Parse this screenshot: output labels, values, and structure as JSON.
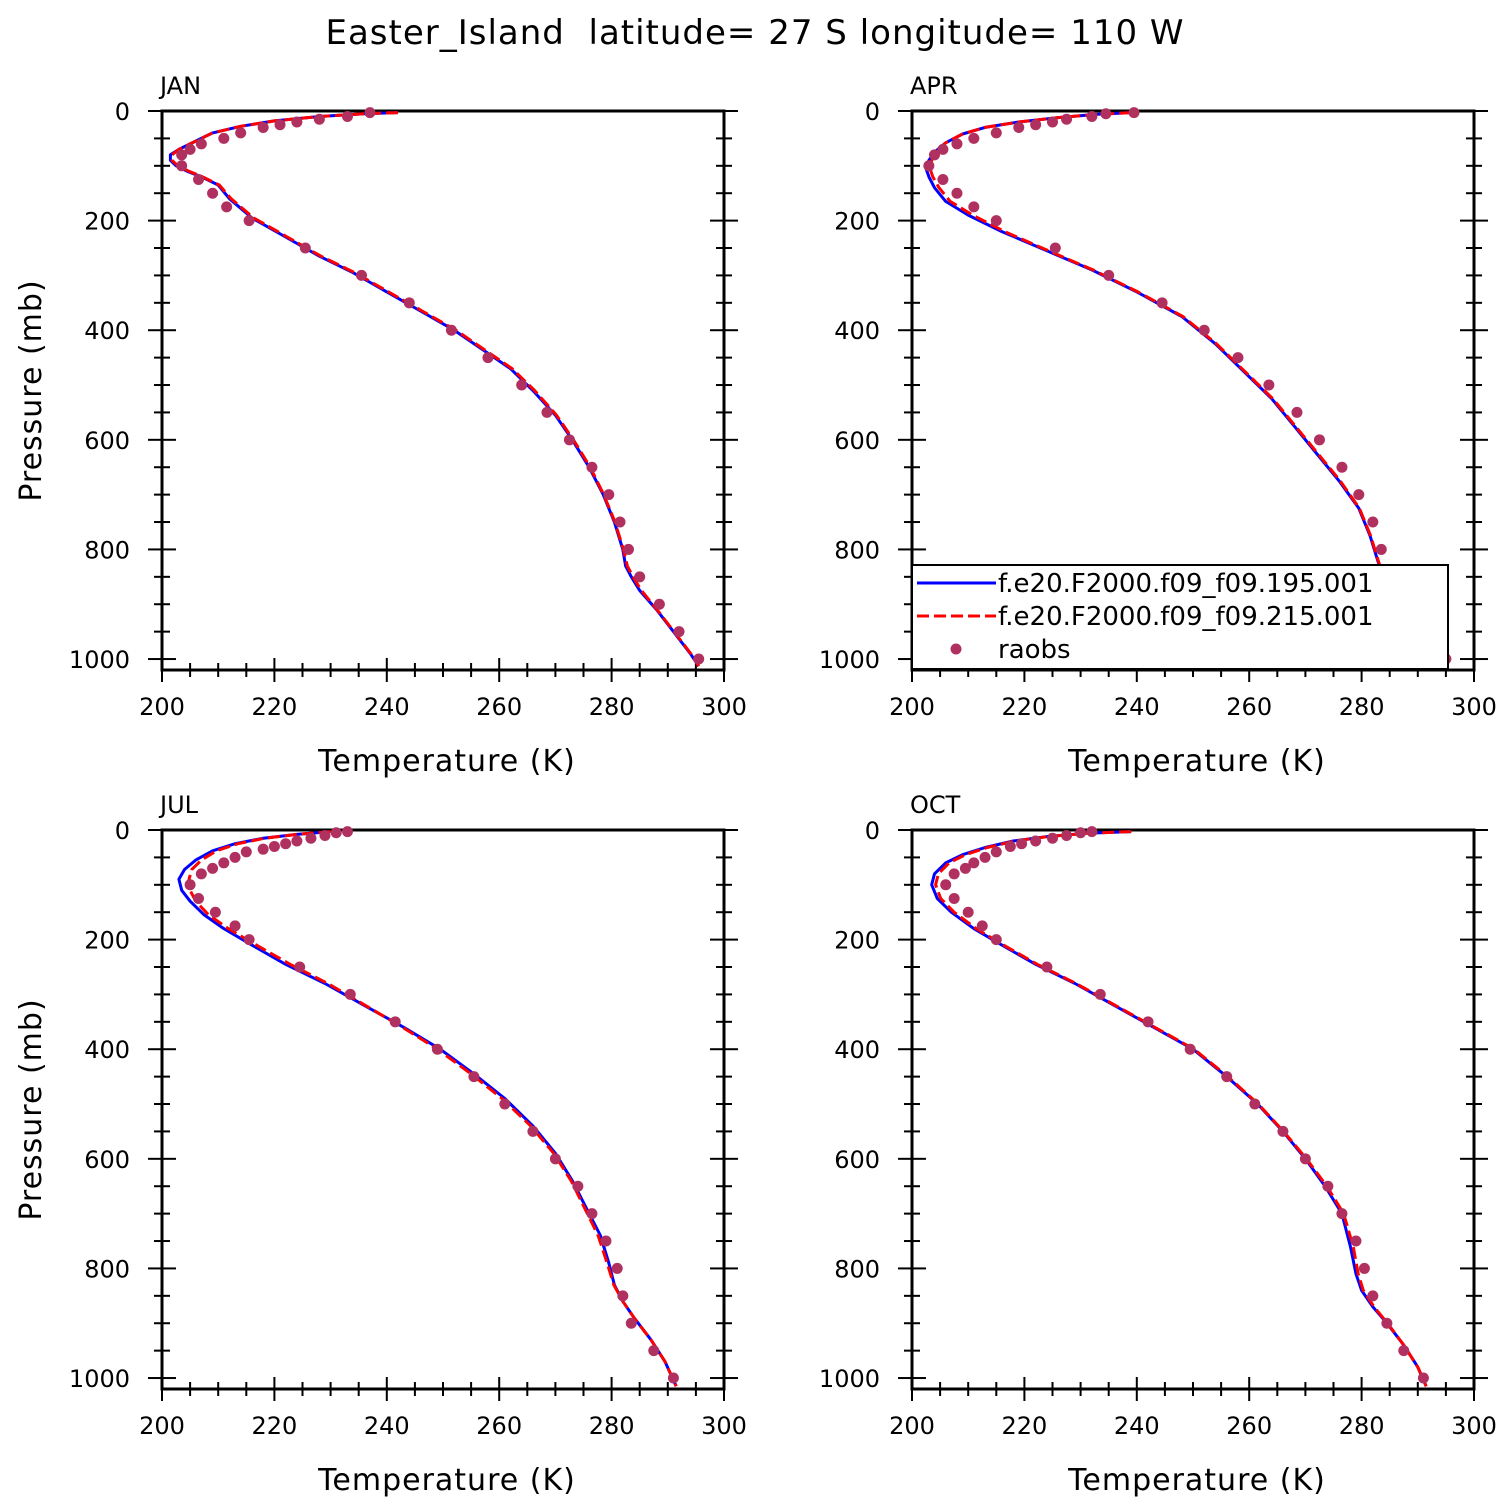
{
  "title": "Easter_Island  latitude= 27 S longitude= 110 W",
  "chart_data": [
    {
      "type": "line",
      "title": "JAN",
      "xlabel": "Temperature (K)",
      "ylabel": "Pressure (mb)",
      "xlim": [
        200,
        300
      ],
      "ylim": [
        0,
        1020
      ],
      "y_inverted": true,
      "xticks": [
        "200",
        "220",
        "240",
        "260",
        "280",
        "300"
      ],
      "yticks": [
        "0",
        "200",
        "400",
        "600",
        "800",
        "1000"
      ],
      "legend": false,
      "series": [
        {
          "name": "f.e20.F2000.f09_f09.195.001",
          "style": "solid",
          "color": "#0000ff",
          "x": [
            242,
            236,
            228,
            220,
            214,
            209,
            206,
            203,
            201.5,
            201.5,
            202.5,
            204.5,
            207,
            210,
            212,
            216,
            222,
            228,
            234,
            240,
            246,
            252,
            257,
            262,
            266,
            270,
            273,
            276,
            278.5,
            280.5,
            282,
            282.5,
            283.5,
            285,
            288,
            291,
            294,
            295.5
          ],
          "y": [
            3,
            5,
            10,
            18,
            28,
            40,
            55,
            70,
            80,
            90,
            100,
            110,
            120,
            135,
            160,
            195,
            230,
            265,
            295,
            330,
            365,
            400,
            435,
            470,
            510,
            555,
            600,
            650,
            700,
            750,
            800,
            830,
            850,
            875,
            910,
            950,
            990,
            1013
          ]
        },
        {
          "name": "f.e20.F2000.f09_f09.215.001",
          "style": "dashed",
          "color": "#ff0000",
          "x": [
            242,
            236,
            228,
            220,
            214,
            209,
            206,
            203,
            201.8,
            201.8,
            202.8,
            204.8,
            207.2,
            210.2,
            212.3,
            216.3,
            222.3,
            228.3,
            234.3,
            240.3,
            246.3,
            252.3,
            257.3,
            262.3,
            266.3,
            270.2,
            273.2,
            276.2,
            278.6,
            280.6,
            282.1,
            282.8,
            283.8,
            285.3,
            288.1,
            291.1,
            294.1,
            295.5
          ],
          "y": [
            3,
            5,
            10,
            18,
            28,
            40,
            55,
            70,
            80,
            90,
            100,
            110,
            120,
            135,
            160,
            195,
            230,
            265,
            295,
            330,
            365,
            400,
            435,
            470,
            510,
            555,
            600,
            650,
            700,
            750,
            800,
            830,
            850,
            875,
            910,
            950,
            990,
            1013
          ]
        },
        {
          "name": "raobs",
          "style": "dots",
          "color": "#b03060",
          "x": [
            237,
            233,
            228,
            224,
            221,
            218,
            214,
            211,
            207,
            205,
            203.5,
            203.5,
            206.5,
            209,
            211.5,
            215.5,
            225.5,
            235.5,
            244,
            251.5,
            258,
            264,
            268.5,
            272.5,
            276.5,
            279.5,
            281.5,
            283,
            285,
            288.5,
            292,
            295.5
          ],
          "y": [
            3,
            10,
            15,
            20,
            25,
            30,
            40,
            50,
            60,
            70,
            80,
            100,
            125,
            150,
            175,
            200,
            250,
            300,
            350,
            400,
            450,
            500,
            550,
            600,
            650,
            700,
            750,
            800,
            850,
            900,
            950,
            1000
          ]
        }
      ]
    },
    {
      "type": "line",
      "title": "APR",
      "xlabel": "Temperature (K)",
      "ylabel": "",
      "xlim": [
        200,
        300
      ],
      "ylim": [
        0,
        1020
      ],
      "y_inverted": true,
      "xticks": [
        "200",
        "220",
        "240",
        "260",
        "280",
        "300"
      ],
      "yticks": [
        "0",
        "200",
        "400",
        "600",
        "800",
        "1000"
      ],
      "legend": true,
      "legend_position": "bottom-right",
      "series": [
        {
          "name": "f.e20.F2000.f09_f09.195.001",
          "style": "solid",
          "color": "#0000ff",
          "x": [
            239,
            233,
            226,
            219,
            213,
            209,
            206,
            204,
            203,
            202.5,
            203,
            204,
            206,
            210,
            216,
            224,
            232,
            240,
            248,
            254,
            259,
            264,
            268,
            272,
            276,
            279.5,
            281.5,
            283,
            284,
            286,
            289,
            292,
            295
          ],
          "y": [
            3,
            6,
            12,
            20,
            30,
            42,
            58,
            75,
            90,
            105,
            120,
            140,
            165,
            190,
            220,
            255,
            290,
            330,
            375,
            425,
            475,
            525,
            575,
            625,
            675,
            725,
            775,
            825,
            850,
            880,
            920,
            970,
            1013
          ]
        },
        {
          "name": "f.e20.F2000.f09_f09.215.001",
          "style": "dashed",
          "color": "#ff0000",
          "x": [
            239,
            233,
            226,
            219,
            213,
            209,
            206,
            204.3,
            203.5,
            203.2,
            203.7,
            204.8,
            206.8,
            210.8,
            216.5,
            224.3,
            232.2,
            240.2,
            248.2,
            254.2,
            259.2,
            264.2,
            268.2,
            272.2,
            276.2,
            279.6,
            281.6,
            283.1,
            284.1,
            286.1,
            289.1,
            292.1,
            295.1
          ],
          "y": [
            3,
            6,
            12,
            20,
            30,
            42,
            58,
            75,
            90,
            105,
            120,
            140,
            165,
            190,
            220,
            255,
            290,
            330,
            375,
            425,
            475,
            525,
            575,
            625,
            675,
            725,
            775,
            825,
            850,
            880,
            920,
            970,
            1013
          ]
        },
        {
          "name": "raobs",
          "style": "dots",
          "color": "#b03060",
          "x": [
            239.5,
            234.5,
            232,
            227.5,
            225,
            222,
            219,
            215,
            211,
            208,
            205.5,
            204,
            203,
            205.5,
            208,
            211,
            215,
            225.5,
            235,
            244.5,
            252,
            258,
            263.5,
            268.5,
            272.5,
            276.5,
            279.5,
            282,
            283.5,
            285,
            287.5,
            291,
            295
          ],
          "y": [
            3,
            5,
            10,
            15,
            20,
            25,
            30,
            40,
            50,
            60,
            70,
            80,
            100,
            125,
            150,
            175,
            200,
            250,
            300,
            350,
            400,
            450,
            500,
            550,
            600,
            650,
            700,
            750,
            800,
            850,
            900,
            950,
            1000
          ]
        }
      ]
    },
    {
      "type": "line",
      "title": "JUL",
      "xlabel": "Temperature (K)",
      "ylabel": "Pressure (mb)",
      "xlim": [
        200,
        300
      ],
      "ylim": [
        0,
        1020
      ],
      "y_inverted": true,
      "xticks": [
        "200",
        "220",
        "240",
        "260",
        "280",
        "300"
      ],
      "yticks": [
        "0",
        "200",
        "400",
        "600",
        "800",
        "1000"
      ],
      "legend": false,
      "series": [
        {
          "name": "f.e20.F2000.f09_f09.195.001",
          "style": "solid",
          "color": "#0000ff",
          "x": [
            230,
            224,
            218,
            213,
            209,
            206,
            204,
            203,
            203.5,
            205,
            207.5,
            211,
            216,
            222,
            229,
            236,
            243,
            249.5,
            255.5,
            261,
            266,
            270,
            273,
            275.5,
            278,
            279.5,
            280.5,
            282,
            284,
            287,
            289.5,
            291.5
          ],
          "y": [
            3,
            8,
            15,
            25,
            38,
            55,
            72,
            90,
            110,
            130,
            155,
            180,
            210,
            245,
            280,
            320,
            360,
            400,
            445,
            490,
            540,
            590,
            640,
            690,
            740,
            790,
            830,
            860,
            890,
            930,
            970,
            1015
          ]
        },
        {
          "name": "f.e20.F2000.f09_f09.215.001",
          "style": "dashed",
          "color": "#ff0000",
          "x": [
            230,
            224,
            218.3,
            213.5,
            209.7,
            207,
            205.3,
            204.8,
            205,
            206,
            208.3,
            211.8,
            216.8,
            222.8,
            229.5,
            236.2,
            242.8,
            249,
            255,
            260.5,
            265.6,
            269.7,
            272.8,
            275.2,
            277.6,
            279.2,
            280.4,
            282,
            284,
            287,
            289.5,
            291.5
          ],
          "y": [
            3,
            8,
            15,
            25,
            38,
            55,
            72,
            90,
            110,
            130,
            155,
            180,
            210,
            245,
            280,
            320,
            360,
            400,
            445,
            490,
            540,
            590,
            640,
            690,
            740,
            790,
            830,
            860,
            890,
            930,
            970,
            1015
          ]
        },
        {
          "name": "raobs",
          "style": "dots",
          "color": "#b03060",
          "x": [
            233,
            231,
            229,
            226.5,
            224,
            222,
            220,
            218,
            215,
            213,
            211,
            209,
            207,
            205,
            206.5,
            209.5,
            213,
            215.5,
            224.5,
            233.5,
            241.5,
            249,
            255.5,
            261,
            266,
            270,
            274,
            276.5,
            279,
            281,
            282,
            283.5,
            287.5,
            291
          ],
          "y": [
            3,
            5,
            10,
            15,
            20,
            25,
            30,
            35,
            40,
            50,
            60,
            70,
            80,
            100,
            125,
            150,
            175,
            200,
            250,
            300,
            350,
            400,
            450,
            500,
            550,
            600,
            650,
            700,
            750,
            800,
            850,
            900,
            950,
            1000
          ]
        }
      ]
    },
    {
      "type": "line",
      "title": "OCT",
      "xlabel": "Temperature (K)",
      "ylabel": "",
      "xlim": [
        200,
        300
      ],
      "ylim": [
        0,
        1020
      ],
      "y_inverted": true,
      "xticks": [
        "200",
        "220",
        "240",
        "260",
        "280",
        "300"
      ],
      "yticks": [
        "0",
        "200",
        "400",
        "600",
        "800",
        "1000"
      ],
      "legend": false,
      "series": [
        {
          "name": "f.e20.F2000.f09_f09.195.001",
          "style": "solid",
          "color": "#0000ff",
          "x": [
            239,
            231,
            224,
            218,
            213,
            209,
            206,
            204,
            203.5,
            204.5,
            207,
            211,
            216,
            222,
            229,
            236,
            243,
            250,
            256,
            261.5,
            266,
            270,
            273.5,
            276.5,
            278,
            279,
            280,
            282,
            284.5,
            287.5,
            290,
            291.5
          ],
          "y": [
            3,
            6,
            12,
            20,
            32,
            45,
            60,
            80,
            100,
            125,
            150,
            180,
            210,
            245,
            280,
            320,
            360,
            400,
            450,
            500,
            550,
            600,
            650,
            700,
            760,
            810,
            840,
            870,
            900,
            940,
            980,
            1015
          ]
        },
        {
          "name": "f.e20.F2000.f09_f09.215.001",
          "style": "dashed",
          "color": "#ff0000",
          "x": [
            239,
            231,
            224.2,
            218.3,
            213.4,
            209.5,
            206.6,
            204.7,
            204.2,
            205.1,
            207.5,
            211.4,
            216.3,
            222.3,
            229.2,
            236.2,
            243.2,
            250.2,
            256.2,
            261.6,
            266.1,
            270.2,
            273.8,
            276.8,
            278.5,
            279.4,
            280.3,
            282.2,
            284.6,
            287.5,
            290,
            291.5
          ],
          "y": [
            3,
            6,
            12,
            20,
            32,
            45,
            60,
            80,
            100,
            125,
            150,
            180,
            210,
            245,
            280,
            320,
            360,
            400,
            450,
            500,
            550,
            600,
            650,
            700,
            760,
            810,
            840,
            870,
            900,
            940,
            980,
            1015
          ]
        },
        {
          "name": "raobs",
          "style": "dots",
          "color": "#b03060",
          "x": [
            232,
            230,
            227.5,
            225,
            222,
            219.5,
            217.5,
            215,
            213,
            211,
            209.5,
            207.5,
            206,
            207.5,
            210,
            212.5,
            215,
            224,
            233.5,
            242,
            249.5,
            256,
            261,
            266,
            270,
            274,
            276.5,
            279,
            280.5,
            282,
            284.5,
            287.5,
            291
          ],
          "y": [
            3,
            5,
            10,
            15,
            20,
            25,
            30,
            40,
            50,
            60,
            70,
            80,
            100,
            125,
            150,
            175,
            200,
            250,
            300,
            350,
            400,
            450,
            500,
            550,
            600,
            650,
            700,
            750,
            800,
            850,
            900,
            950,
            1000
          ]
        }
      ]
    }
  ]
}
